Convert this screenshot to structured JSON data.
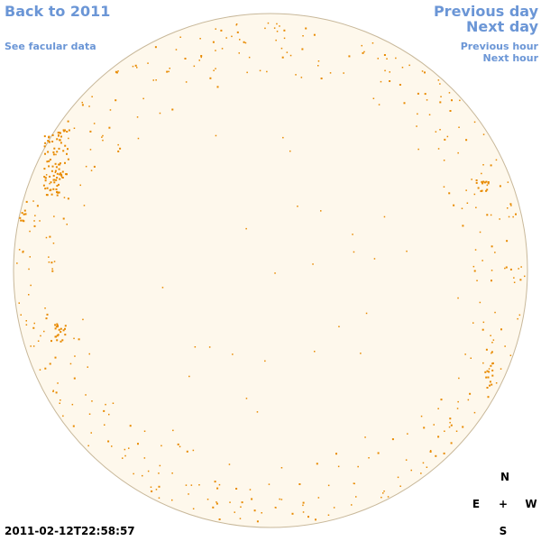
{
  "nav": {
    "back_label": "Back to 2011",
    "facular_label": "See facular data",
    "prev_day_label": "Previous day",
    "next_day_label": "Next day",
    "prev_hour_label": "Previous hour",
    "next_hour_label": "Next hour"
  },
  "timestamp": "2011-02-12T22:58:57",
  "compass": {
    "north": "N",
    "east": "E",
    "center": "+",
    "west": "W",
    "south": "S"
  },
  "colors": {
    "link": "#6b96d6",
    "disk_fill": "#fef8ec",
    "disk_edge": "#c8b89a",
    "facula": "#e88a00"
  }
}
